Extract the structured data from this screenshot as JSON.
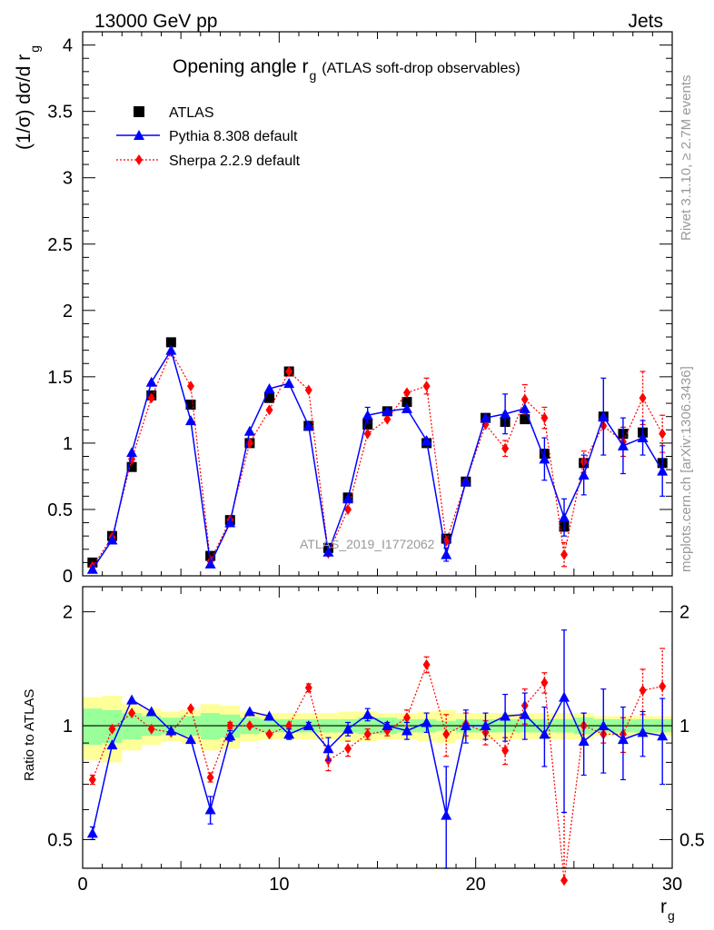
{
  "header": {
    "left": "13000 GeV pp",
    "right": "Jets"
  },
  "title": {
    "main": "Opening angle r",
    "sub": "g",
    "suffix": "(ATLAS soft-drop observables)"
  },
  "ylabel_main": {
    "text": "(1/σ) dσ/d r",
    "sub": "g"
  },
  "ylabel_ratio": "Ratio to ATLAS",
  "xlabel": {
    "text": "r",
    "sub": "g"
  },
  "side_rivet": "Rivet 3.1.10, ≥ 2.7M events",
  "side_mcplots": "mcplots.cern.ch [arXiv:1306.3436]",
  "watermark": "ATLAS_2019_I1772062",
  "legend": [
    {
      "label": "ATLAS",
      "color": "#000000",
      "marker": "square"
    },
    {
      "label": "Pythia 8.308 default",
      "color": "#0000ff",
      "marker": "triangle"
    },
    {
      "label": "Sherpa 2.2.9 default",
      "color": "#ff0000",
      "marker": "diamond"
    }
  ],
  "main_yticks": [
    "0",
    "0.5",
    "1",
    "1.5",
    "2",
    "2.5",
    "3",
    "3.5",
    "4"
  ],
  "ratio_yticks": [
    "0.5",
    "1",
    "2"
  ],
  "xticks": [
    "0",
    "10",
    "20",
    "30"
  ],
  "chart_data": [
    {
      "type": "scatter",
      "panel": "main",
      "xlim": [
        0,
        30
      ],
      "ylim": [
        0,
        4.1
      ],
      "x": [
        0.5,
        1.5,
        2.5,
        3.5,
        4.5,
        5.5,
        6.5,
        7.5,
        8.5,
        9.5,
        10.5,
        11.5,
        12.5,
        13.5,
        14.5,
        15.5,
        16.5,
        17.5,
        18.5,
        19.5,
        20.5,
        21.5,
        22.5,
        23.5,
        24.5,
        25.5,
        26.5,
        27.5,
        28.5,
        29.5
      ],
      "series": [
        {
          "name": "ATLAS",
          "color": "#000000",
          "values": [
            0.1,
            0.3,
            0.82,
            1.36,
            1.76,
            1.29,
            0.15,
            0.42,
            1.0,
            1.34,
            1.54,
            1.13,
            0.21,
            0.59,
            1.14,
            1.24,
            1.31,
            1.0,
            0.28,
            0.71,
            1.19,
            1.16,
            1.18,
            0.92,
            0.37,
            0.85,
            1.2,
            1.07,
            1.08,
            0.85
          ]
        },
        {
          "name": "Pythia 8.308 default",
          "color": "#0000ff",
          "values": [
            0.05,
            0.27,
            0.93,
            1.46,
            1.7,
            1.17,
            0.09,
            0.4,
            1.09,
            1.41,
            1.45,
            1.13,
            0.18,
            0.58,
            1.21,
            1.24,
            1.26,
            1.02,
            0.16,
            0.71,
            1.19,
            1.22,
            1.26,
            0.88,
            0.44,
            0.76,
            1.2,
            0.98,
            1.04,
            0.79
          ],
          "errors": [
            0,
            0,
            0,
            0,
            0,
            0,
            0,
            0,
            0,
            0,
            0,
            0,
            0,
            0,
            0.06,
            0,
            0,
            0,
            0.05,
            0,
            0,
            0.15,
            0,
            0.16,
            0.14,
            0.15,
            0.29,
            0.21,
            0.13,
            0.19
          ]
        },
        {
          "name": "Sherpa 2.2.9 default",
          "color": "#ff0000",
          "values": [
            0.07,
            0.29,
            0.88,
            1.34,
            1.69,
            1.43,
            0.11,
            0.42,
            1.0,
            1.25,
            1.54,
            1.4,
            0.17,
            0.5,
            1.07,
            1.18,
            1.38,
            1.43,
            0.26,
            0.71,
            1.14,
            0.96,
            1.33,
            1.19,
            0.16,
            0.86,
            1.13,
            1.01,
            1.34,
            1.07
          ],
          "errors": [
            0,
            0,
            0,
            0,
            0,
            0,
            0,
            0,
            0,
            0,
            0,
            0,
            0,
            0,
            0,
            0,
            0,
            0.06,
            0,
            0,
            0,
            0.06,
            0.11,
            0.08,
            0.09,
            0.08,
            0,
            0.11,
            0.2,
            0.14
          ]
        }
      ]
    },
    {
      "type": "scatter",
      "panel": "ratio",
      "ylabel": "Ratio to ATLAS",
      "xlim": [
        0,
        30
      ],
      "ylim": [
        0.42,
        2.33
      ],
      "ylog": true,
      "x": [
        0.5,
        1.5,
        2.5,
        3.5,
        4.5,
        5.5,
        6.5,
        7.5,
        8.5,
        9.5,
        10.5,
        11.5,
        12.5,
        13.5,
        14.5,
        15.5,
        16.5,
        17.5,
        18.5,
        19.5,
        20.5,
        21.5,
        22.5,
        23.5,
        24.5,
        25.5,
        26.5,
        27.5,
        28.5,
        29.5
      ],
      "bands": {
        "green_half": [
          0.11,
          0.1,
          0.08,
          0.06,
          0.05,
          0.06,
          0.08,
          0.07,
          0.05,
          0.04,
          0.04,
          0.04,
          0.04,
          0.04,
          0.05,
          0.05,
          0.04,
          0.04,
          0.03,
          0.04,
          0.04,
          0.04,
          0.04,
          0.04,
          0.04,
          0.05,
          0.04,
          0.04,
          0.04,
          0.04
        ],
        "yellow_half": [
          0.19,
          0.2,
          0.14,
          0.11,
          0.09,
          0.1,
          0.14,
          0.13,
          0.09,
          0.08,
          0.08,
          0.08,
          0.08,
          0.09,
          0.09,
          0.08,
          0.08,
          0.09,
          0.1,
          0.08,
          0.08,
          0.08,
          0.08,
          0.08,
          0.08,
          0.08,
          0.06,
          0.06,
          0.06,
          0.06
        ]
      },
      "series": [
        {
          "name": "Pythia 8.308 default",
          "color": "#0000ff",
          "values": [
            0.52,
            0.89,
            1.17,
            1.09,
            0.97,
            0.92,
            0.6,
            0.94,
            1.09,
            1.06,
            0.95,
            1.0,
            0.87,
            0.98,
            1.07,
            1.0,
            0.97,
            1.02,
            0.58,
            1.0,
            1.0,
            1.06,
            1.07,
            0.95,
            1.19,
            0.91,
            1.0,
            0.92,
            0.96,
            0.94
          ],
          "errors": [
            0.02,
            0,
            0,
            0,
            0,
            0,
            0.05,
            0.03,
            0,
            0,
            0.03,
            0.02,
            0.06,
            0.04,
            0.04,
            0.02,
            0.05,
            0.06,
            0.2,
            0.1,
            0.08,
            0.15,
            0.15,
            0.17,
            0.6,
            0.17,
            0.25,
            0.2,
            0.13,
            0.24
          ]
        },
        {
          "name": "Sherpa 2.2.9 default",
          "color": "#ff0000",
          "values": [
            0.72,
            0.98,
            1.08,
            0.98,
            0.96,
            1.11,
            0.73,
            1.0,
            1.0,
            0.95,
            1.0,
            1.26,
            0.81,
            0.87,
            0.95,
            0.97,
            1.05,
            1.45,
            0.95,
            1.01,
            0.96,
            0.86,
            1.13,
            1.3,
            0.39,
            1.0,
            0.95,
            0.95,
            1.24,
            1.27
          ],
          "errors": [
            0.02,
            0,
            0,
            0,
            0,
            0,
            0.02,
            0.02,
            0,
            0,
            0,
            0.03,
            0.05,
            0.04,
            0.03,
            0.03,
            0.05,
            0.07,
            0.12,
            0.07,
            0.07,
            0.07,
            0.12,
            0.08,
            0.2,
            0.08,
            0.05,
            0.1,
            0.17,
            0.33
          ]
        }
      ]
    }
  ]
}
